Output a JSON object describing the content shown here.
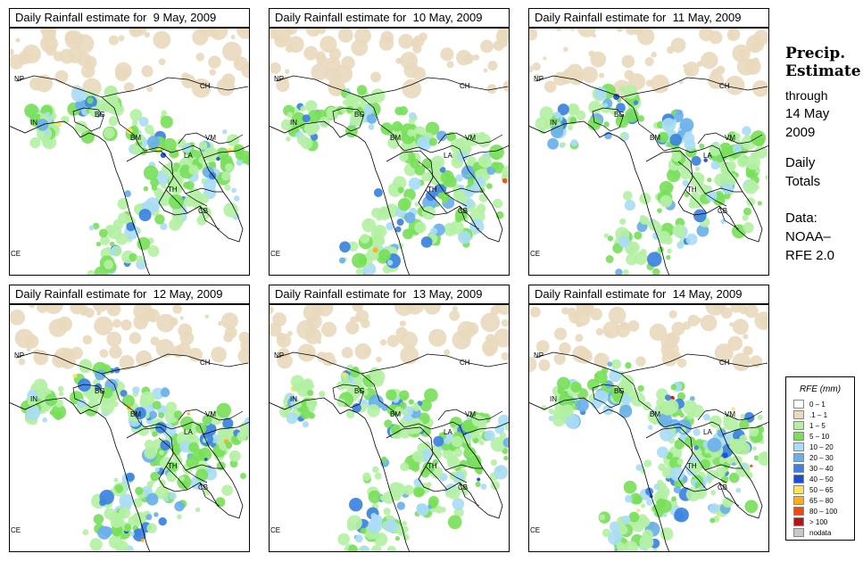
{
  "panels": [
    {
      "title": "Daily Rainfall estimate for  9 May, 2009",
      "intensity": 2
    },
    {
      "title": "Daily Rainfall estimate for  10 May, 2009",
      "intensity": 3
    },
    {
      "title": "Daily Rainfall estimate for  11 May, 2009",
      "intensity": 2
    },
    {
      "title": "Daily Rainfall estimate for  12 May, 2009",
      "intensity": 3
    },
    {
      "title": "Daily Rainfall estimate for  13 May, 2009",
      "intensity": 3
    },
    {
      "title": "Daily Rainfall estimate for  14 May, 2009",
      "intensity": 4
    }
  ],
  "map_labels": {
    "np": "NP",
    "ch": "CH",
    "in": "IN",
    "bg": "BG",
    "bm": "BM",
    "vm": "VM",
    "la": "LA",
    "th": "TH",
    "cb": "CB",
    "ce": "CE"
  },
  "side": {
    "title_line1": "Precip.",
    "title_line2": "Estimate",
    "through": "through",
    "date_line1": "14 May",
    "date_line2": "2009",
    "daily": "Daily",
    "totals": "Totals",
    "data_label": "Data:",
    "source_line1": "NOAA–",
    "source_line2": "RFE 2.0"
  },
  "legend": {
    "title": "RFE (mm)",
    "items": [
      {
        "label": "0 – 1",
        "color": "#ffffff"
      },
      {
        "label": ".1 – 1",
        "color": "#e9d9bd"
      },
      {
        "label": "1 – 5",
        "color": "#b4f0a4"
      },
      {
        "label": "5 – 10",
        "color": "#78e05a"
      },
      {
        "label": "10 – 20",
        "color": "#a9dcf5"
      },
      {
        "label": "20 – 30",
        "color": "#6ab0ea"
      },
      {
        "label": "30 – 40",
        "color": "#3c82e0"
      },
      {
        "label": "40 – 50",
        "color": "#1a4ed0"
      },
      {
        "label": "50 – 65",
        "color": "#ffe35a"
      },
      {
        "label": "65 – 80",
        "color": "#ffae1a"
      },
      {
        "label": "80 – 100",
        "color": "#f04a14"
      },
      {
        "label": "> 100",
        "color": "#b41414"
      },
      {
        "label": "nodata",
        "color": "#c8c8c8"
      }
    ]
  }
}
